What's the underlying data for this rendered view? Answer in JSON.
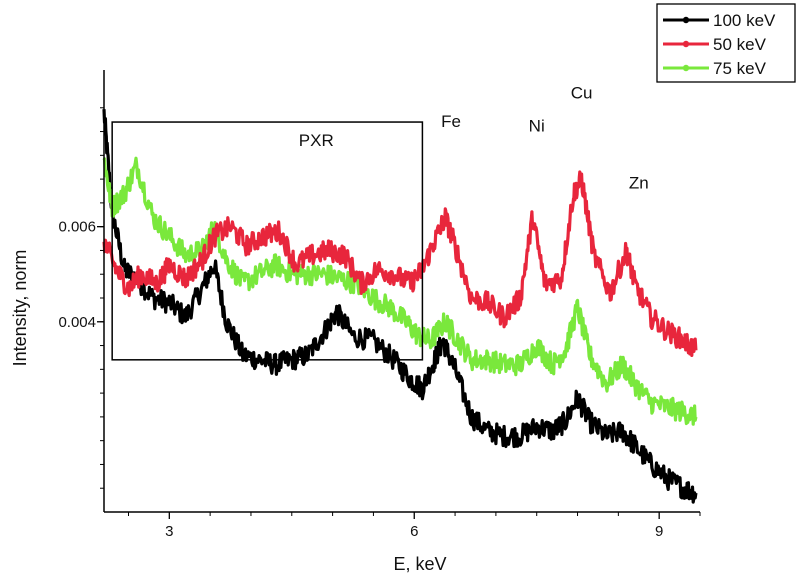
{
  "chart_data": {
    "type": "line",
    "title": "",
    "xlabel": "E, keV",
    "ylabel": "Intensity, norm",
    "xlim": [
      2.2,
      9.5
    ],
    "ylim": [
      0.0,
      0.009
    ],
    "x_ticks": [
      {
        "value": 3,
        "label": "3"
      },
      {
        "value": 6,
        "label": "6"
      },
      {
        "value": 9,
        "label": "9"
      }
    ],
    "y_ticks": [
      {
        "value": 0.004,
        "label": "0.004"
      },
      {
        "value": 0.006,
        "label": "0.006"
      }
    ],
    "grid": false,
    "legend_position": "top-right",
    "series": [
      {
        "name": "100 keV",
        "color": "#000000",
        "points": [
          [
            2.2,
            0.0084
          ],
          [
            2.3,
            0.0063
          ],
          [
            2.45,
            0.0051
          ],
          [
            2.6,
            0.0049
          ],
          [
            2.8,
            0.0045
          ],
          [
            3.0,
            0.0044
          ],
          [
            3.2,
            0.0041
          ],
          [
            3.4,
            0.0047
          ],
          [
            3.55,
            0.0052
          ],
          [
            3.7,
            0.004
          ],
          [
            3.9,
            0.0033
          ],
          [
            4.1,
            0.0032
          ],
          [
            4.3,
            0.0031
          ],
          [
            4.5,
            0.0032
          ],
          [
            4.7,
            0.0033
          ],
          [
            4.9,
            0.0038
          ],
          [
            5.05,
            0.0042
          ],
          [
            5.25,
            0.0037
          ],
          [
            5.5,
            0.0036
          ],
          [
            5.75,
            0.0032
          ],
          [
            5.95,
            0.0028
          ],
          [
            6.1,
            0.0026
          ],
          [
            6.25,
            0.0032
          ],
          [
            6.35,
            0.0036
          ],
          [
            6.5,
            0.003
          ],
          [
            6.7,
            0.002
          ],
          [
            6.9,
            0.0017
          ],
          [
            7.1,
            0.0016
          ],
          [
            7.3,
            0.0016
          ],
          [
            7.5,
            0.0018
          ],
          [
            7.7,
            0.0017
          ],
          [
            7.85,
            0.0019
          ],
          [
            8.0,
            0.0024
          ],
          [
            8.15,
            0.0019
          ],
          [
            8.35,
            0.0016
          ],
          [
            8.55,
            0.0017
          ],
          [
            8.7,
            0.0014
          ],
          [
            8.9,
            0.001
          ],
          [
            9.1,
            0.0007
          ],
          [
            9.3,
            0.0005
          ],
          [
            9.45,
            0.0004
          ]
        ]
      },
      {
        "name": "50 keV",
        "color": "#e8263c",
        "points": [
          [
            2.2,
            0.0057
          ],
          [
            2.35,
            0.0051
          ],
          [
            2.5,
            0.0047
          ],
          [
            2.65,
            0.005
          ],
          [
            2.85,
            0.0048
          ],
          [
            3.0,
            0.0052
          ],
          [
            3.2,
            0.0049
          ],
          [
            3.4,
            0.0053
          ],
          [
            3.55,
            0.0058
          ],
          [
            3.75,
            0.006
          ],
          [
            3.95,
            0.0056
          ],
          [
            4.15,
            0.0058
          ],
          [
            4.35,
            0.0059
          ],
          [
            4.55,
            0.0052
          ],
          [
            4.75,
            0.0054
          ],
          [
            4.95,
            0.0055
          ],
          [
            5.15,
            0.0054
          ],
          [
            5.35,
            0.0048
          ],
          [
            5.55,
            0.0051
          ],
          [
            5.75,
            0.005
          ],
          [
            5.95,
            0.0048
          ],
          [
            6.1,
            0.0051
          ],
          [
            6.25,
            0.0057
          ],
          [
            6.38,
            0.0062
          ],
          [
            6.5,
            0.0056
          ],
          [
            6.7,
            0.0045
          ],
          [
            6.9,
            0.0044
          ],
          [
            7.1,
            0.0041
          ],
          [
            7.3,
            0.0045
          ],
          [
            7.45,
            0.0062
          ],
          [
            7.6,
            0.0048
          ],
          [
            7.8,
            0.0049
          ],
          [
            7.95,
            0.0067
          ],
          [
            8.05,
            0.007
          ],
          [
            8.2,
            0.0054
          ],
          [
            8.4,
            0.0046
          ],
          [
            8.6,
            0.0055
          ],
          [
            8.7,
            0.0048
          ],
          [
            8.9,
            0.0041
          ],
          [
            9.1,
            0.0038
          ],
          [
            9.3,
            0.0036
          ],
          [
            9.45,
            0.0034
          ]
        ]
      },
      {
        "name": "75 keV",
        "color": "#7ae83c",
        "points": [
          [
            2.2,
            0.0074
          ],
          [
            2.3,
            0.0064
          ],
          [
            2.45,
            0.0067
          ],
          [
            2.6,
            0.0073
          ],
          [
            2.8,
            0.0062
          ],
          [
            3.0,
            0.0058
          ],
          [
            3.2,
            0.0054
          ],
          [
            3.4,
            0.0055
          ],
          [
            3.55,
            0.006
          ],
          [
            3.7,
            0.0053
          ],
          [
            3.9,
            0.0048
          ],
          [
            4.1,
            0.005
          ],
          [
            4.3,
            0.0052
          ],
          [
            4.5,
            0.005
          ],
          [
            4.7,
            0.005
          ],
          [
            4.9,
            0.005
          ],
          [
            5.1,
            0.0049
          ],
          [
            5.3,
            0.0048
          ],
          [
            5.5,
            0.0045
          ],
          [
            5.7,
            0.0043
          ],
          [
            5.9,
            0.004
          ],
          [
            6.05,
            0.0037
          ],
          [
            6.2,
            0.0036
          ],
          [
            6.38,
            0.004
          ],
          [
            6.5,
            0.0037
          ],
          [
            6.7,
            0.0032
          ],
          [
            6.9,
            0.0032
          ],
          [
            7.1,
            0.0031
          ],
          [
            7.3,
            0.0031
          ],
          [
            7.5,
            0.0035
          ],
          [
            7.7,
            0.0031
          ],
          [
            7.85,
            0.0034
          ],
          [
            8.0,
            0.0043
          ],
          [
            8.15,
            0.0033
          ],
          [
            8.35,
            0.0027
          ],
          [
            8.55,
            0.0031
          ],
          [
            8.7,
            0.0027
          ],
          [
            8.9,
            0.0023
          ],
          [
            9.1,
            0.0022
          ],
          [
            9.3,
            0.0021
          ],
          [
            9.45,
            0.002
          ]
        ]
      }
    ],
    "annotations": [
      {
        "text": "PXR",
        "x": 4.8,
        "y": 0.0077
      },
      {
        "text": "Fe",
        "x": 6.45,
        "y": 0.0081
      },
      {
        "text": "Ni",
        "x": 7.5,
        "y": 0.008
      },
      {
        "text": "Cu",
        "x": 8.05,
        "y": 0.0087
      },
      {
        "text": "Zn",
        "x": 8.75,
        "y": 0.0068
      }
    ],
    "region_box": {
      "x": [
        2.3,
        6.1
      ],
      "y": [
        0.0032,
        0.0082
      ]
    }
  }
}
